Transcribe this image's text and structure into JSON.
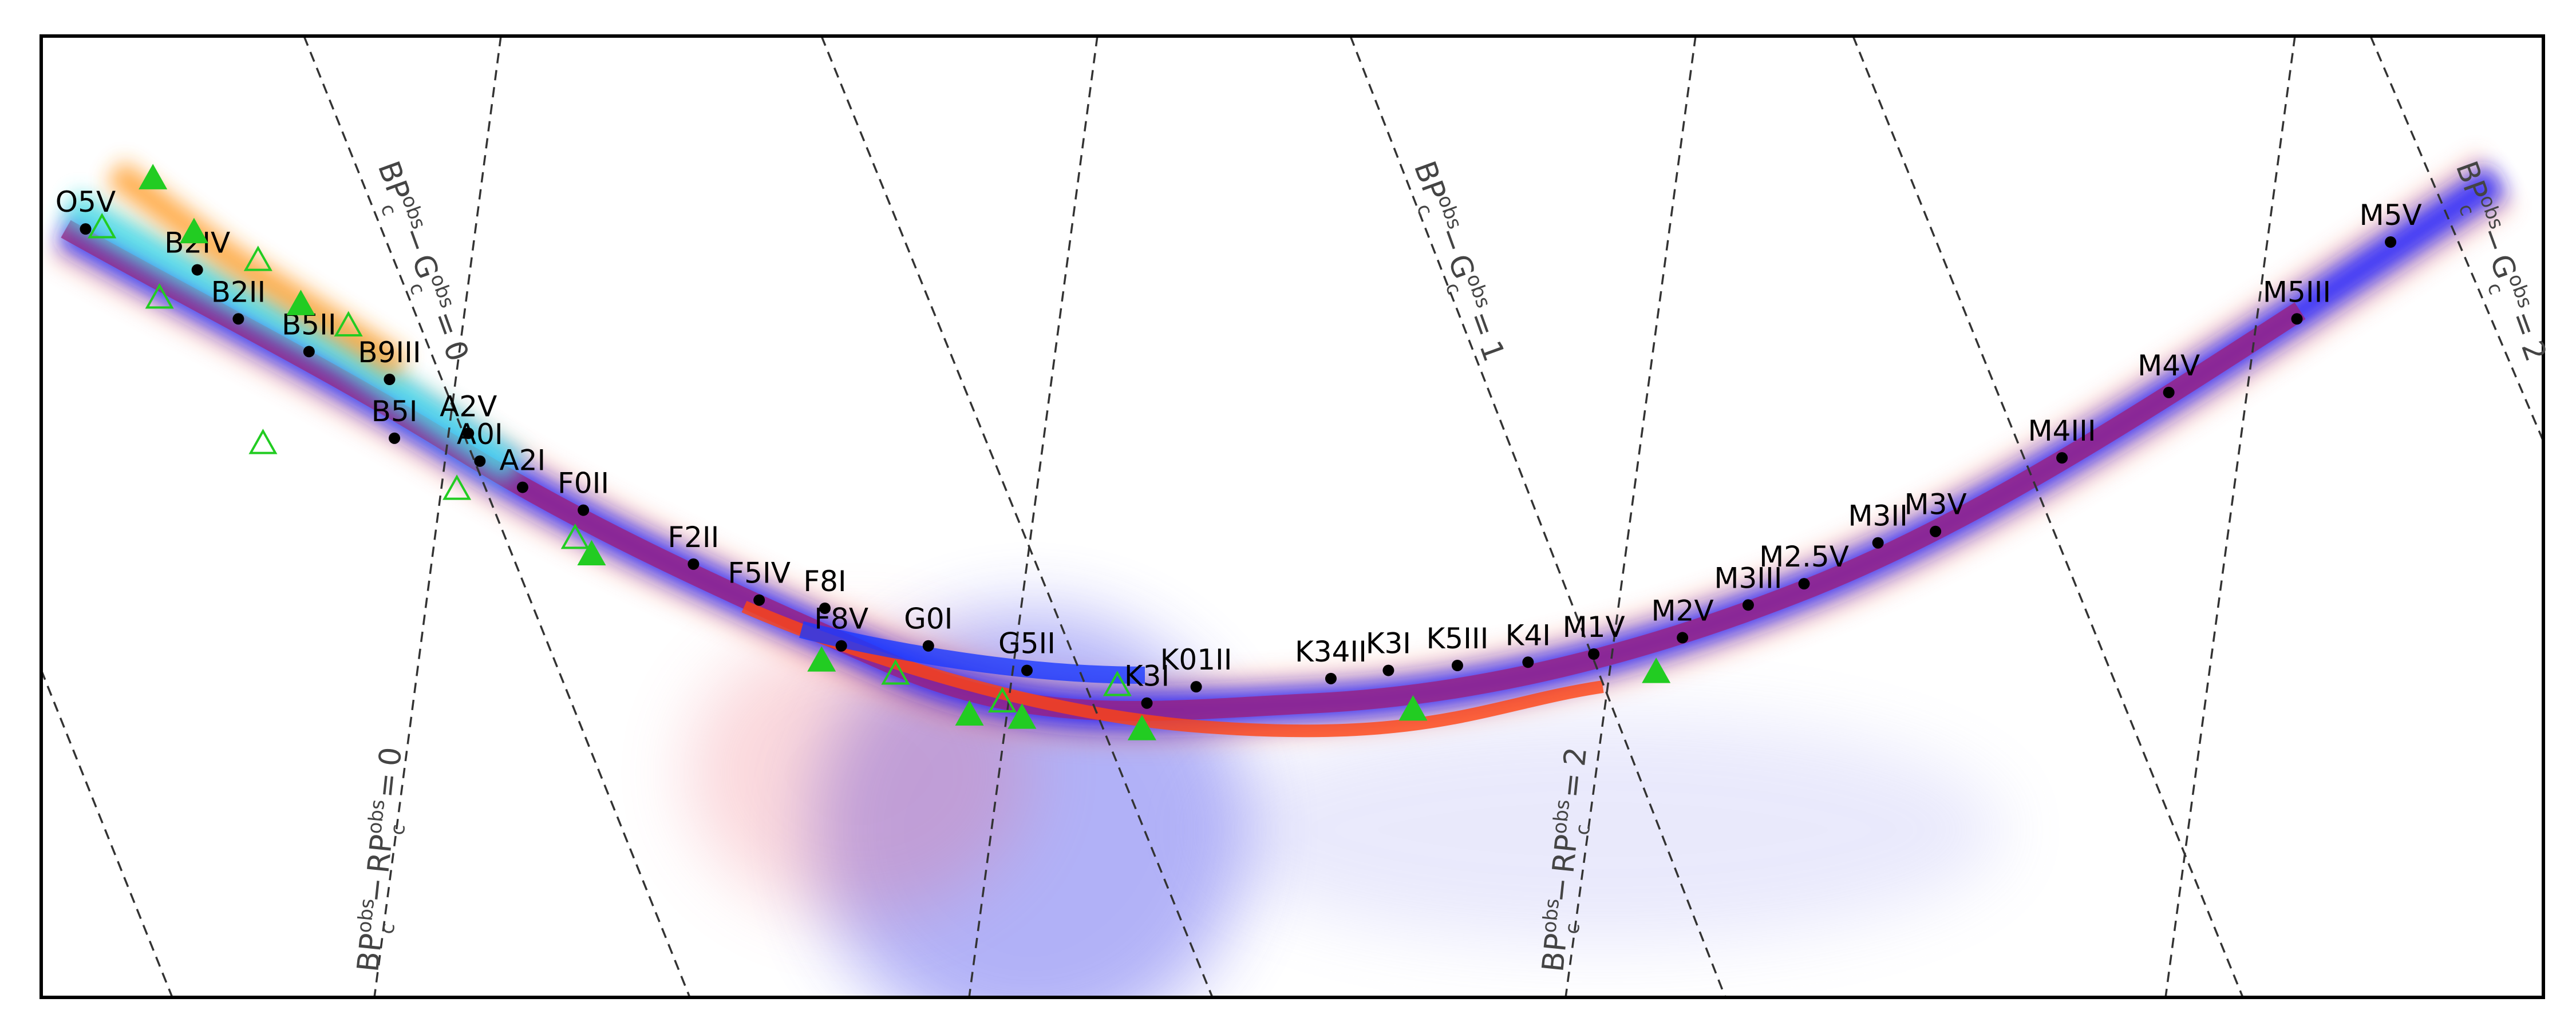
{
  "chart_data": {
    "type": "scatter",
    "xlim": [
      25,
      1548
    ],
    "ylim": [
      610,
      22
    ],
    "series": [
      {
        "marker": "dot",
        "color": "#000000",
        "labels": [
          "O5V",
          "B2IV",
          "B2II",
          "B5II",
          "B9III",
          "A2V",
          "B5I",
          "A0I",
          "A2I",
          "F0II",
          "F2II",
          "F5IV",
          "F8I",
          "F8V",
          "G0I",
          "G5II",
          "K3I",
          "K01II",
          "K34II",
          "K3I",
          "K5III",
          "K4I",
          "M1V",
          "M2V",
          "M3III",
          "M2.5V",
          "M3II",
          "M3V",
          "M4III",
          "M4V",
          "M5III",
          "M5V"
        ],
        "x": [
          52,
          120,
          145,
          188,
          237,
          285,
          240,
          292,
          318,
          355,
          422,
          462,
          502,
          512,
          565,
          625,
          698,
          728,
          810,
          845,
          887,
          930,
          970,
          1024,
          1064,
          1098,
          1143,
          1178,
          1255,
          1320,
          1398,
          1455
        ],
        "y": [
          140,
          165,
          195,
          215,
          232,
          265,
          268,
          282,
          298,
          312,
          345,
          367,
          372,
          395,
          395,
          410,
          430,
          420,
          415,
          410,
          407,
          405,
          400,
          390,
          370,
          357,
          332,
          325,
          280,
          240,
          195,
          148
        ]
      },
      {
        "marker": "triangle-filled",
        "color": "#22cc22",
        "x": [
          93,
          118,
          183,
          360,
          500,
          590,
          622,
          695,
          860,
          1008
        ],
        "y": [
          110,
          143,
          187,
          340,
          405,
          438,
          440,
          447,
          435,
          412
        ]
      },
      {
        "marker": "triangle-open",
        "color": "#22cc22",
        "x": [
          62,
          97,
          157,
          160,
          278,
          350,
          545,
          610,
          680,
          212
        ],
        "y": [
          140,
          183,
          160,
          272,
          300,
          330,
          413,
          430,
          420,
          200
        ]
      }
    ],
    "isolines": [
      {
        "a": "BP",
        "b": "G",
        "sub": "c",
        "sup": "obs",
        "op": "−",
        "relation": "=",
        "value": 0
      },
      {
        "a": "BP",
        "b": "G",
        "sub": "c",
        "sup": "obs",
        "op": "−",
        "relation": "=",
        "value": 1
      },
      {
        "a": "BP",
        "b": "G",
        "sub": "c",
        "sup": "obs",
        "op": "−",
        "relation": "=",
        "value": 2
      },
      {
        "a": "BP",
        "b": "RP",
        "sub": "c",
        "sup": "obs",
        "op": "−",
        "relation": "=",
        "value": 0
      },
      {
        "a": "BP",
        "b": "RP",
        "sub": "c",
        "sup": "obs",
        "op": "−",
        "relation": "=",
        "value": 2
      }
    ]
  }
}
